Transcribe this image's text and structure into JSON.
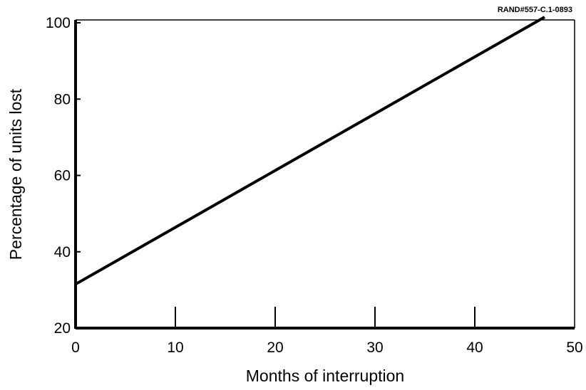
{
  "chart_data": {
    "type": "line",
    "title": "",
    "source_note": "RAND#557-C.1-0893",
    "xlabel": "Months of interruption",
    "ylabel": "Percentage of units lost",
    "xlim": [
      0,
      50
    ],
    "ylim": [
      20,
      100
    ],
    "x_ticks": [
      0,
      10,
      20,
      30,
      40,
      50
    ],
    "y_ticks": [
      20,
      40,
      60,
      80,
      100
    ],
    "grid": false,
    "legend": "none",
    "series": [
      {
        "color": "#000000",
        "x": [
          0,
          47
        ],
        "y": [
          31.5,
          101.5
        ]
      }
    ]
  }
}
